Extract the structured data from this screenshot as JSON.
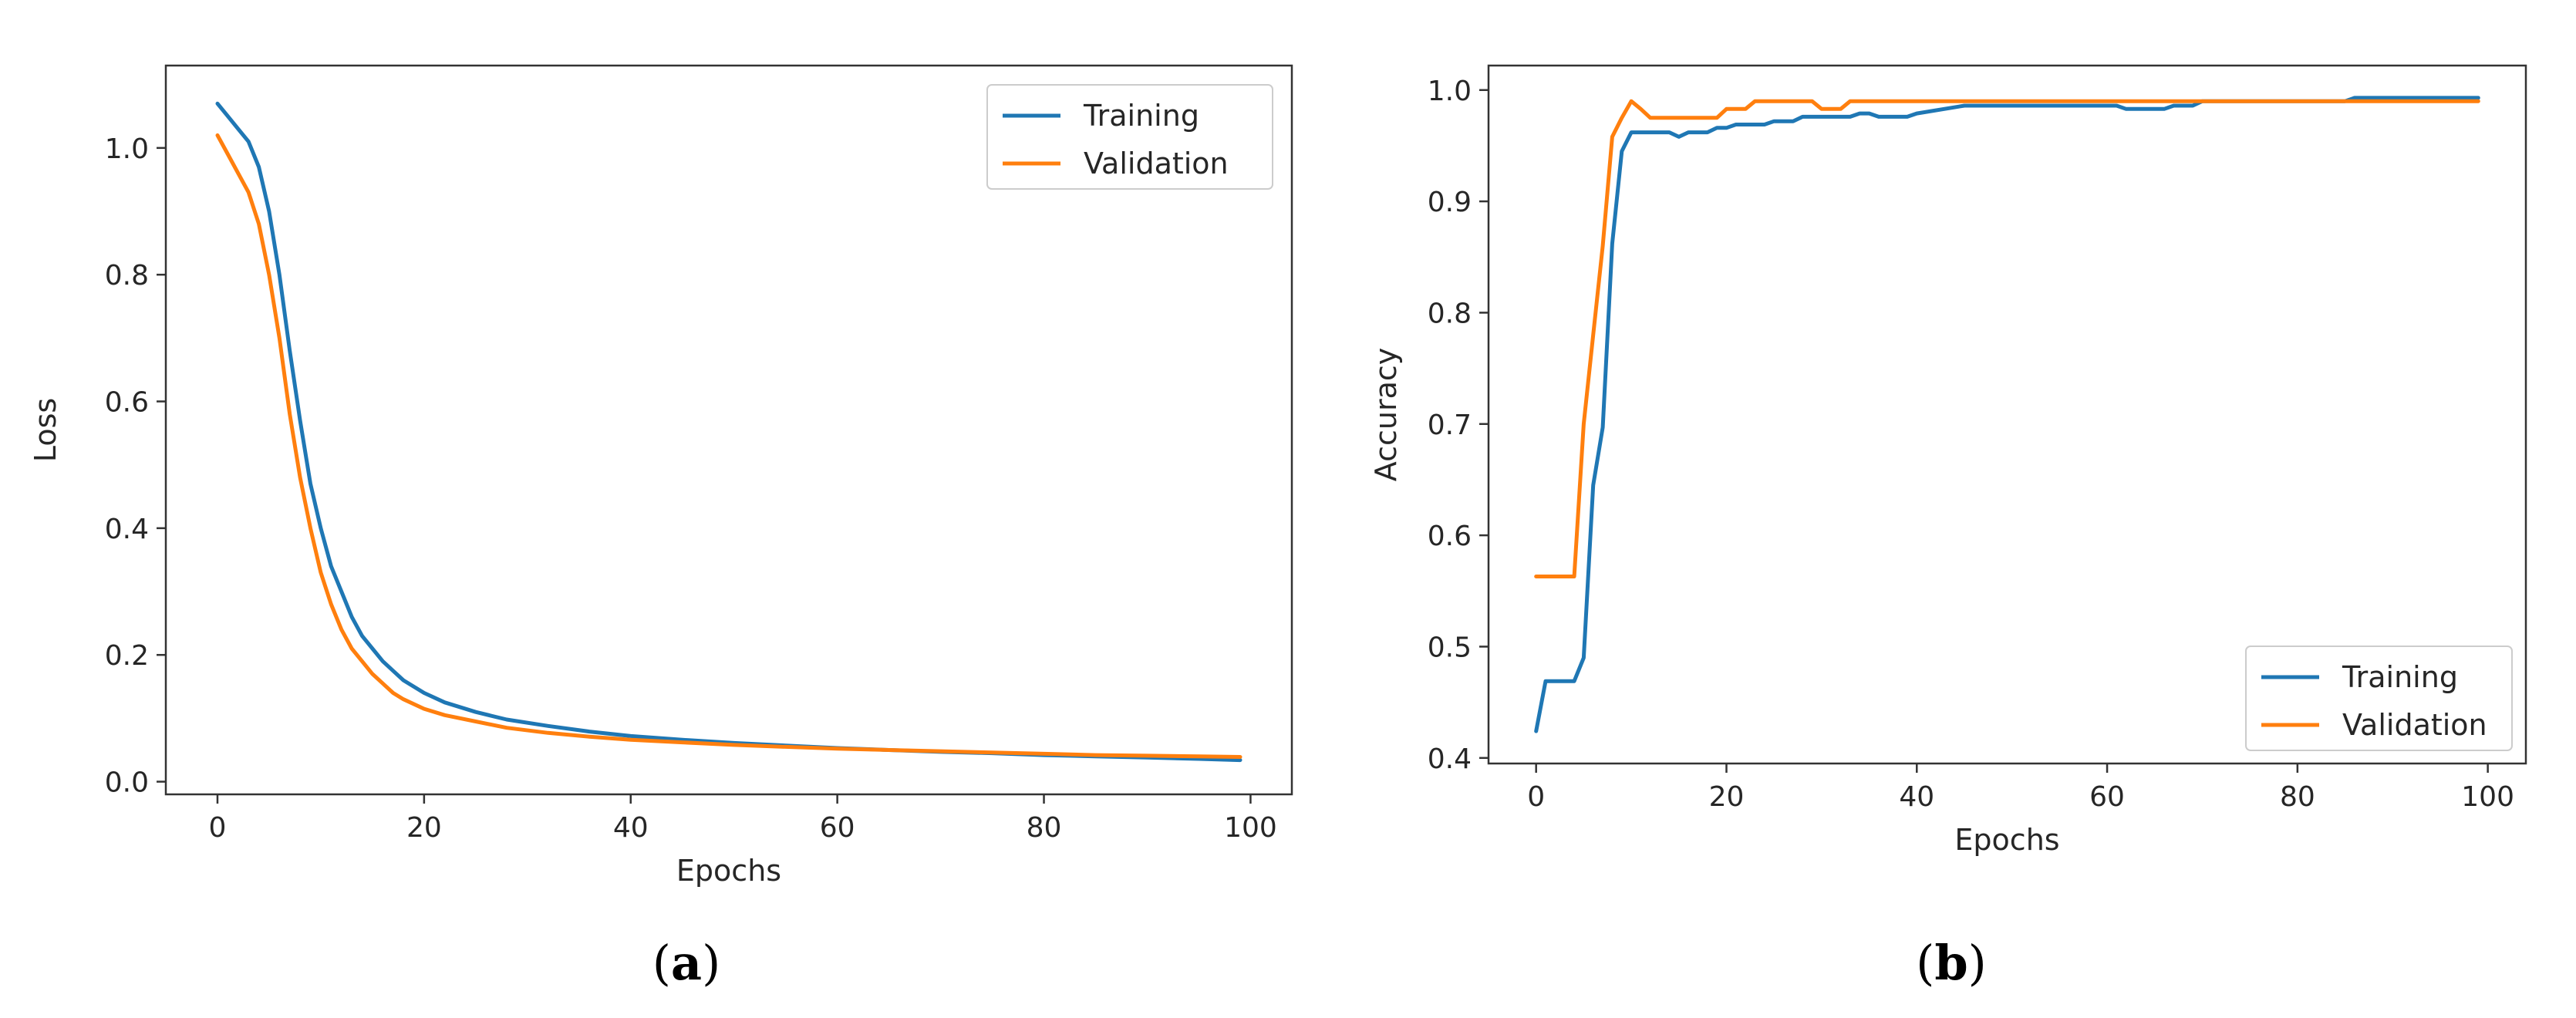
{
  "colors": {
    "training": "#1f77b4",
    "validation": "#ff7f0e"
  },
  "chart_data": [
    {
      "type": "line",
      "panel_caption": {
        "open": "(",
        "letter": "a",
        "close": ")"
      },
      "title": "",
      "xlabel": "Epochs",
      "ylabel": "Loss",
      "xlim": [
        -5,
        104
      ],
      "ylim": [
        -0.02,
        1.13
      ],
      "xticks": [
        0,
        20,
        40,
        60,
        80,
        100
      ],
      "xtick_labels": [
        "0",
        "20",
        "40",
        "60",
        "80",
        "100"
      ],
      "yticks": [
        0.0,
        0.2,
        0.4,
        0.6,
        0.8,
        1.0
      ],
      "ytick_labels": [
        "0.0",
        "0.2",
        "0.4",
        "0.6",
        "0.8",
        "1.0"
      ],
      "grid": false,
      "legend_position": "upper right",
      "series": [
        {
          "name": "Training",
          "color_key": "training",
          "x": [
            0,
            1,
            2,
            3,
            4,
            5,
            6,
            7,
            8,
            9,
            10,
            11,
            12,
            13,
            14,
            15,
            16,
            17,
            18,
            20,
            22,
            25,
            28,
            32,
            36,
            40,
            45,
            50,
            55,
            60,
            65,
            70,
            75,
            80,
            85,
            90,
            95,
            99
          ],
          "y": [
            1.07,
            1.05,
            1.03,
            1.01,
            0.97,
            0.9,
            0.8,
            0.68,
            0.57,
            0.47,
            0.4,
            0.34,
            0.3,
            0.26,
            0.23,
            0.21,
            0.19,
            0.175,
            0.16,
            0.14,
            0.125,
            0.11,
            0.098,
            0.088,
            0.079,
            0.072,
            0.066,
            0.061,
            0.057,
            0.053,
            0.05,
            0.047,
            0.045,
            0.042,
            0.04,
            0.038,
            0.036,
            0.034
          ]
        },
        {
          "name": "Validation",
          "color_key": "validation",
          "x": [
            0,
            1,
            2,
            3,
            4,
            5,
            6,
            7,
            8,
            9,
            10,
            11,
            12,
            13,
            14,
            15,
            16,
            17,
            18,
            20,
            22,
            25,
            28,
            32,
            36,
            40,
            45,
            50,
            55,
            60,
            65,
            70,
            75,
            80,
            85,
            90,
            95,
            99
          ],
          "y": [
            1.02,
            0.99,
            0.96,
            0.93,
            0.88,
            0.8,
            0.7,
            0.58,
            0.48,
            0.4,
            0.33,
            0.28,
            0.24,
            0.21,
            0.19,
            0.17,
            0.155,
            0.14,
            0.13,
            0.115,
            0.105,
            0.095,
            0.085,
            0.077,
            0.071,
            0.066,
            0.062,
            0.058,
            0.055,
            0.052,
            0.05,
            0.048,
            0.046,
            0.044,
            0.042,
            0.041,
            0.04,
            0.039
          ]
        }
      ]
    },
    {
      "type": "line",
      "panel_caption": {
        "open": "(",
        "letter": "b",
        "close": ")"
      },
      "title": "",
      "xlabel": "Epochs",
      "ylabel": "Accuracy",
      "xlim": [
        -5,
        104
      ],
      "ylim": [
        0.395,
        1.022
      ],
      "xticks": [
        0,
        20,
        40,
        60,
        80,
        100
      ],
      "xtick_labels": [
        "0",
        "20",
        "40",
        "60",
        "80",
        "100"
      ],
      "yticks": [
        0.4,
        0.5,
        0.6,
        0.7,
        0.8,
        0.9,
        1.0
      ],
      "ytick_labels": [
        "0.4",
        "0.5",
        "0.6",
        "0.7",
        "0.8",
        "0.9",
        "1.0"
      ],
      "grid": false,
      "legend_position": "lower right",
      "series": [
        {
          "name": "Training",
          "color_key": "training",
          "x": [
            0,
            1,
            2,
            3,
            4,
            5,
            6,
            7,
            8,
            9,
            10,
            11,
            12,
            13,
            14,
            15,
            16,
            17,
            18,
            19,
            20,
            21,
            22,
            23,
            24,
            25,
            26,
            27,
            28,
            29,
            30,
            31,
            32,
            33,
            34,
            35,
            36,
            37,
            38,
            39,
            40,
            45,
            50,
            55,
            60,
            61,
            62,
            63,
            64,
            65,
            66,
            67,
            68,
            69,
            70,
            75,
            80,
            85,
            86,
            90,
            95,
            99
          ],
          "y": [
            0.424,
            0.469,
            0.469,
            0.469,
            0.469,
            0.49,
            0.645,
            0.697,
            0.862,
            0.945,
            0.962,
            0.962,
            0.962,
            0.962,
            0.962,
            0.958,
            0.962,
            0.962,
            0.962,
            0.966,
            0.966,
            0.969,
            0.969,
            0.969,
            0.969,
            0.972,
            0.972,
            0.972,
            0.976,
            0.976,
            0.976,
            0.976,
            0.976,
            0.976,
            0.979,
            0.979,
            0.976,
            0.976,
            0.976,
            0.976,
            0.979,
            0.986,
            0.986,
            0.986,
            0.986,
            0.986,
            0.983,
            0.983,
            0.983,
            0.983,
            0.983,
            0.986,
            0.986,
            0.986,
            0.99,
            0.99,
            0.99,
            0.99,
            0.993,
            0.993,
            0.993,
            0.993
          ]
        },
        {
          "name": "Validation",
          "color_key": "validation",
          "x": [
            0,
            1,
            2,
            3,
            4,
            5,
            6,
            7,
            8,
            9,
            10,
            11,
            12,
            13,
            14,
            15,
            16,
            17,
            18,
            19,
            20,
            21,
            22,
            23,
            24,
            25,
            26,
            27,
            28,
            29,
            30,
            31,
            32,
            33,
            34,
            35,
            36,
            37,
            38,
            39,
            40,
            45,
            50,
            55,
            60,
            65,
            70,
            75,
            80,
            85,
            90,
            95,
            99
          ],
          "y": [
            0.563,
            0.563,
            0.563,
            0.563,
            0.563,
            0.7,
            0.78,
            0.86,
            0.958,
            0.975,
            0.99,
            0.983,
            0.975,
            0.975,
            0.975,
            0.975,
            0.975,
            0.975,
            0.975,
            0.975,
            0.983,
            0.983,
            0.983,
            0.99,
            0.99,
            0.99,
            0.99,
            0.99,
            0.99,
            0.99,
            0.983,
            0.983,
            0.983,
            0.99,
            0.99,
            0.99,
            0.99,
            0.99,
            0.99,
            0.99,
            0.99,
            0.99,
            0.99,
            0.99,
            0.99,
            0.99,
            0.99,
            0.99,
            0.99,
            0.99,
            0.99,
            0.99,
            0.99
          ]
        }
      ]
    }
  ]
}
